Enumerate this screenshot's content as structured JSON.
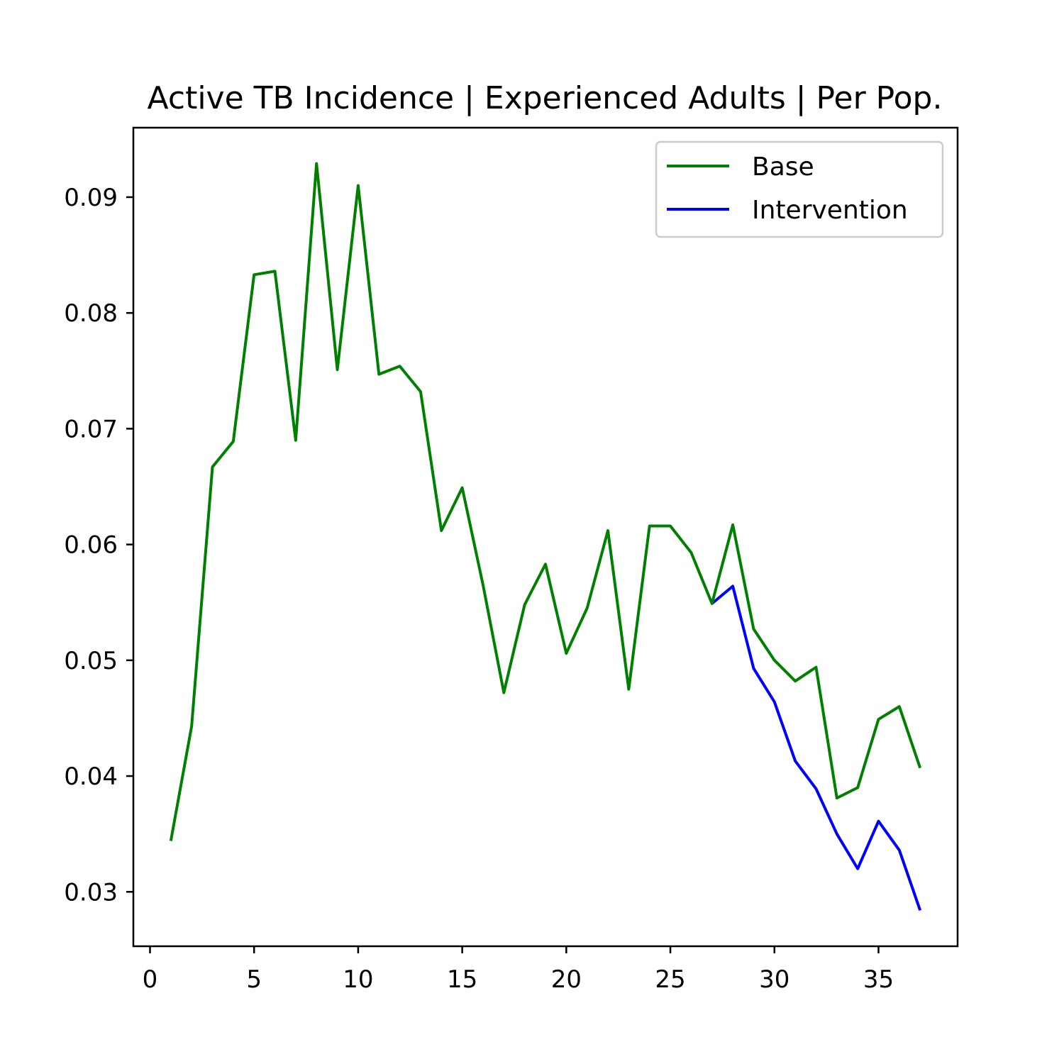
{
  "chart_data": {
    "type": "line",
    "title": "Active TB Incidence | Experienced Adults | Per Pop.",
    "xlabel": "",
    "ylabel": "",
    "xlim": [
      -0.8,
      38.8
    ],
    "ylim": [
      0.0253,
      0.096
    ],
    "x_ticks": [
      "0",
      "5",
      "10",
      "15",
      "20",
      "25",
      "30",
      "35"
    ],
    "y_ticks": [
      "0.03",
      "0.04",
      "0.05",
      "0.06",
      "0.07",
      "0.08",
      "0.09"
    ],
    "grid": false,
    "legend_position": "upper right",
    "series": [
      {
        "name": "Base",
        "color": "#008000",
        "x": [
          1,
          2,
          3,
          4,
          5,
          6,
          7,
          8,
          9,
          10,
          11,
          12,
          13,
          14,
          15,
          16,
          17,
          18,
          19,
          20,
          21,
          22,
          23,
          24,
          25,
          26,
          27,
          28,
          29,
          30,
          31,
          32,
          33,
          34,
          35,
          36,
          37
        ],
        "y": [
          0.0344,
          0.0443,
          0.0667,
          0.0689,
          0.0833,
          0.0836,
          0.069,
          0.0929,
          0.0751,
          0.091,
          0.0747,
          0.0754,
          0.0732,
          0.0612,
          0.0649,
          0.0565,
          0.0472,
          0.0548,
          0.0583,
          0.0506,
          0.0545,
          0.0612,
          0.0475,
          0.0616,
          0.0616,
          0.0593,
          0.0549,
          0.0617,
          0.0527,
          0.05,
          0.0482,
          0.0494,
          0.0381,
          0.039,
          0.0449,
          0.046,
          0.0407
        ]
      },
      {
        "name": "Intervention",
        "color": "#0000ff",
        "x": [
          27,
          28,
          29,
          30,
          31,
          32,
          33,
          34,
          35,
          36,
          37
        ],
        "y": [
          0.0549,
          0.0564,
          0.0493,
          0.0464,
          0.0413,
          0.0389,
          0.035,
          0.032,
          0.0361,
          0.0336,
          0.0284
        ]
      }
    ]
  }
}
